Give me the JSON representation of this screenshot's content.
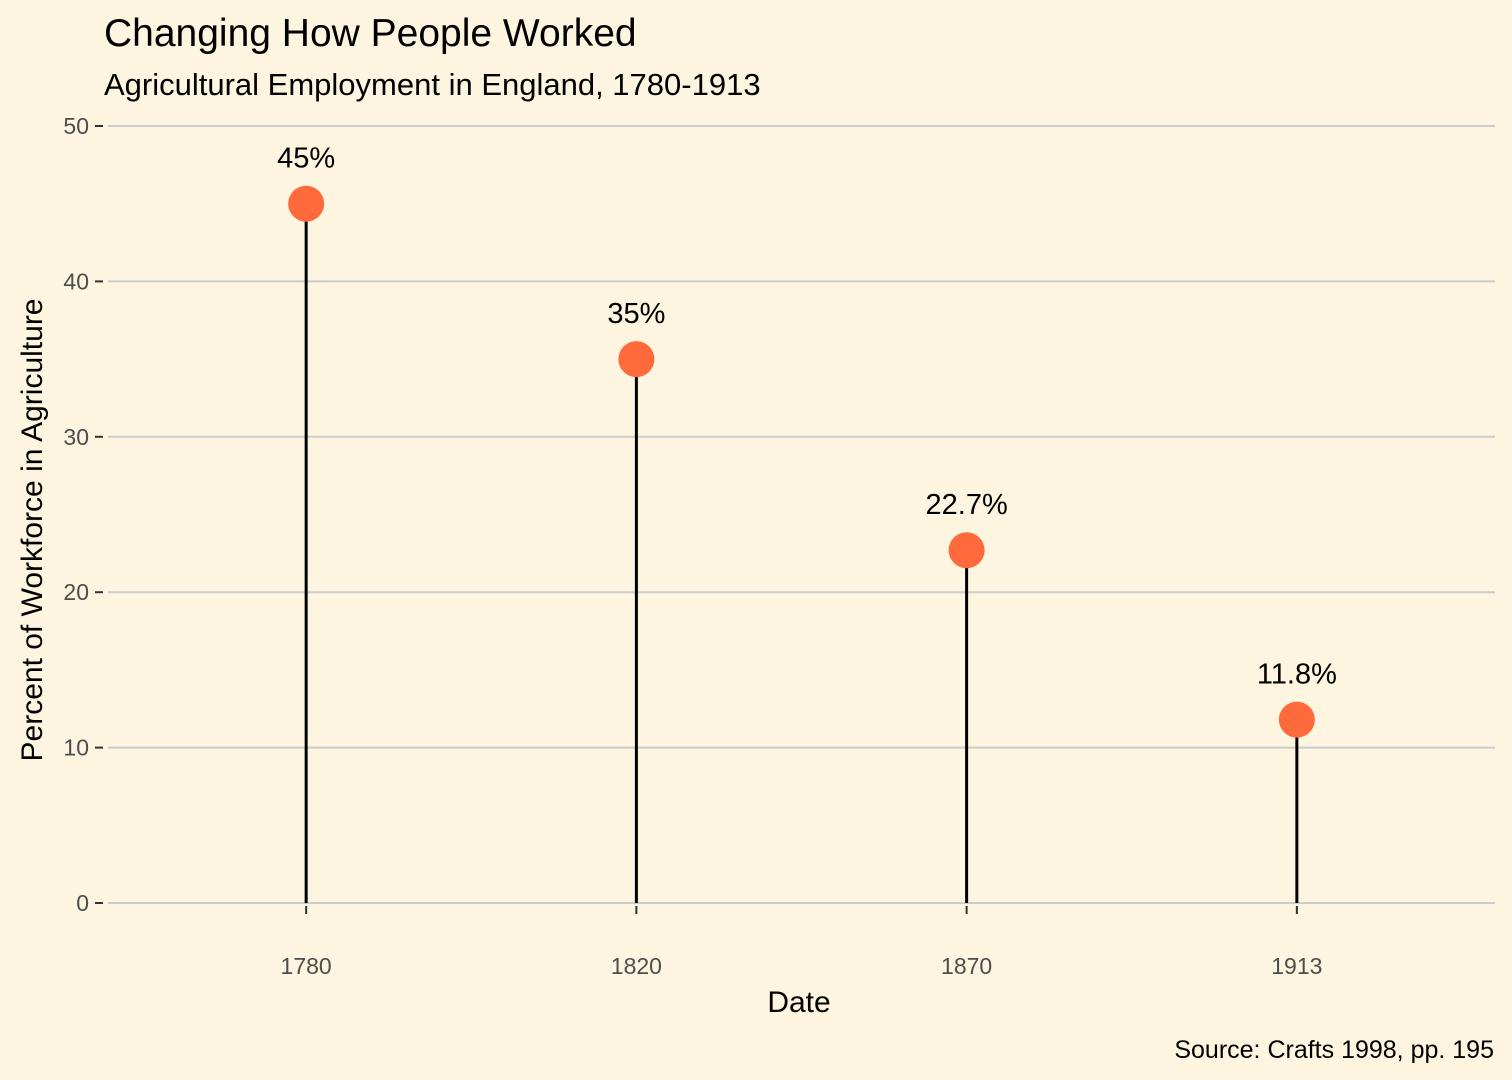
{
  "chart_data": {
    "type": "lollipop",
    "title": "Changing How People Worked",
    "subtitle": "Agricultural Employment in England, 1780-1913",
    "xlabel": "Date",
    "ylabel": "Percent of Workforce in Agriculture",
    "caption": "Source: Crafts 1998, pp. 195",
    "categories": [
      "1780",
      "1820",
      "1870",
      "1913"
    ],
    "values": [
      45,
      35,
      22.7,
      11.8
    ],
    "data_labels": [
      "45%",
      "35%",
      "22.7%",
      "11.8%"
    ],
    "ylim": [
      0,
      50
    ],
    "yticks": [
      0,
      10,
      20,
      30,
      40,
      50
    ],
    "grid": "horizontal",
    "colors": {
      "background": "#FDF5DF",
      "point": "#FF6A3D",
      "stem": "#000000",
      "grid": "#CCCCCC"
    }
  }
}
